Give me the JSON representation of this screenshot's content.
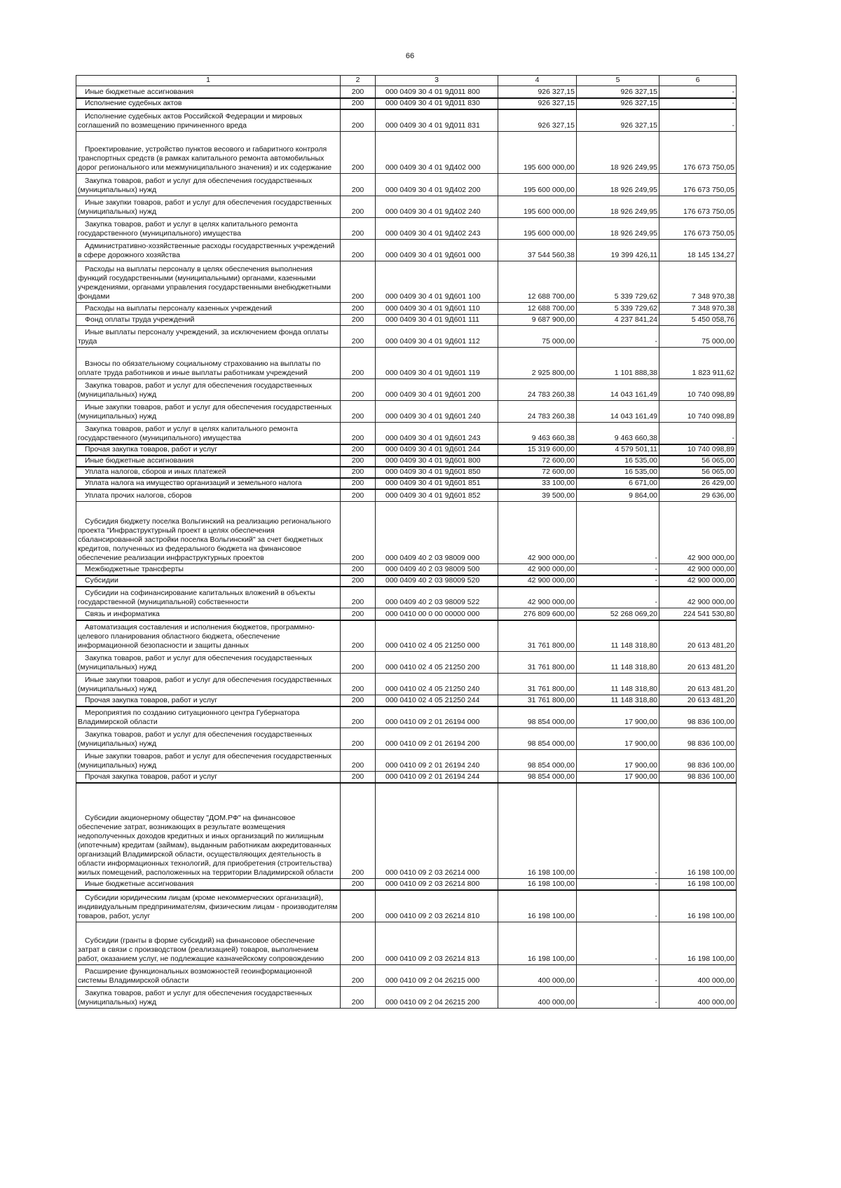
{
  "page_number": "66",
  "headers": [
    "1",
    "2",
    "3",
    "4",
    "5",
    "6"
  ],
  "rows": [
    [
      "Иные бюджетные ассигнования",
      "200",
      "000 0409 30 4 01 9Д011 800",
      "926 327,15",
      "926 327,15",
      "-"
    ],
    [
      "Исполнение судебных актов",
      "200",
      "000 0409 30 4 01 9Д011 830",
      "926 327,15",
      "926 327,15",
      "-"
    ],
    [
      "Исполнение судебных актов Российской Федерации и мировых соглашений по возмещению причиненного вреда",
      "200",
      "000 0409 30 4 01 9Д011 831",
      "926 327,15",
      "926 327,15",
      "-"
    ],
    [
      "Проектирование, устройство пунктов весового и габаритного контроля транспортных средств (в рамках капитального ремонта автомобильных дорог регионального или межмуниципального значения) и их содержание",
      "200",
      "000 0409 30 4 01 9Д402 000",
      "195 600 000,00",
      "18 926 249,95",
      "176 673 750,05"
    ],
    [
      "Закупка товаров, работ и услуг для обеспечения государственных (муниципальных) нужд",
      "200",
      "000 0409 30 4 01 9Д402 200",
      "195 600 000,00",
      "18 926 249,95",
      "176 673 750,05"
    ],
    [
      "Иные закупки товаров, работ и услуг для обеспечения государственных (муниципальных) нужд",
      "200",
      "000 0409 30 4 01 9Д402 240",
      "195 600 000,00",
      "18 926 249,95",
      "176 673 750,05"
    ],
    [
      "Закупка товаров, работ и услуг в целях капитального ремонта государственного (муниципального) имущества",
      "200",
      "000 0409 30 4 01 9Д402 243",
      "195 600 000,00",
      "18 926 249,95",
      "176 673 750,05"
    ],
    [
      "Административно-хозяйственные расходы государственных учреждений в сфере дорожного хозяйства",
      "200",
      "000 0409 30 4 01 9Д601 000",
      "37 544 560,38",
      "19 399 426,11",
      "18 145 134,27"
    ],
    [
      "Расходы на выплаты персоналу в целях обеспечения выполнения функций государственными (муниципальными) органами, казенными учреждениями, органами управления государственными внебюджетными фондами",
      "200",
      "000 0409 30 4 01 9Д601 100",
      "12 688 700,00",
      "5 339 729,62",
      "7 348 970,38"
    ],
    [
      "Расходы на выплаты персоналу казенных учреждений",
      "200",
      "000 0409 30 4 01 9Д601 110",
      "12 688 700,00",
      "5 339 729,62",
      "7 348 970,38"
    ],
    [
      "Фонд оплаты труда учреждений",
      "200",
      "000 0409 30 4 01 9Д601 111",
      "9 687 900,00",
      "4 237 841,24",
      "5 450 058,76"
    ],
    [
      "Иные выплаты персоналу учреждений, за исключением фонда оплаты труда",
      "200",
      "000 0409 30 4 01 9Д601 112",
      "75 000,00",
      "-",
      "75 000,00"
    ],
    [
      "Взносы по обязательному социальному страхованию на выплаты по оплате труда работников и иные выплаты работникам учреждений",
      "200",
      "000 0409 30 4 01 9Д601 119",
      "2 925 800,00",
      "1 101 888,38",
      "1 823 911,62"
    ],
    [
      "Закупка товаров, работ и услуг для обеспечения государственных (муниципальных) нужд",
      "200",
      "000 0409 30 4 01 9Д601 200",
      "24 783 260,38",
      "14 043 161,49",
      "10 740 098,89"
    ],
    [
      "Иные закупки товаров, работ и услуг для обеспечения государственных (муниципальных) нужд",
      "200",
      "000 0409 30 4 01 9Д601 240",
      "24 783 260,38",
      "14 043 161,49",
      "10 740 098,89"
    ],
    [
      "Закупка товаров, работ и услуг в целях капитального ремонта государственного (муниципального) имущества",
      "200",
      "000 0409 30 4 01 9Д601 243",
      "9 463 660,38",
      "9 463 660,38",
      "-"
    ],
    [
      "Прочая закупка товаров, работ и услуг",
      "200",
      "000 0409 30 4 01 9Д601 244",
      "15 319 600,00",
      "4 579 501,11",
      "10 740 098,89"
    ],
    [
      "Иные бюджетные ассигнования",
      "200",
      "000 0409 30 4 01 9Д601 800",
      "72 600,00",
      "16 535,00",
      "56 065,00"
    ],
    [
      "Уплата налогов, сборов и иных платежей",
      "200",
      "000 0409 30 4 01 9Д601 850",
      "72 600,00",
      "16 535,00",
      "56 065,00"
    ],
    [
      "Уплата налога на имущество организаций и земельного налога",
      "200",
      "000 0409 30 4 01 9Д601 851",
      "33 100,00",
      "6 671,00",
      "26 429,00"
    ],
    [
      "Уплата прочих налогов, сборов",
      "200",
      "000 0409 30 4 01 9Д601 852",
      "39 500,00",
      "9 864,00",
      "29 636,00"
    ],
    [
      "Субсидия бюджету поселка Вольгинский на реализацию регионального проекта \"Инфраструктурный проект в целях обеспечения сбалансированной застройки поселка Вольгинский\" за счет бюджетных кредитов, полученных из федерального бюджета на финансовое обеспечение реализации инфраструктурных проектов",
      "200",
      "000 0409 40 2 03 98009 000",
      "42 900 000,00",
      "-",
      "42 900 000,00"
    ],
    [
      "Межбюджетные трансферты",
      "200",
      "000 0409 40 2 03 98009 500",
      "42 900 000,00",
      "-",
      "42 900 000,00"
    ],
    [
      "Субсидии",
      "200",
      "000 0409 40 2 03 98009 520",
      "42 900 000,00",
      "-",
      "42 900 000,00"
    ],
    [
      "Субсидии на софинансирование капитальных вложений в объекты государственной (муниципальной) собственности",
      "200",
      "000 0409 40 2 03 98009 522",
      "42 900 000,00",
      "-",
      "42 900 000,00"
    ],
    [
      "Связь и информатика",
      "200",
      "000 0410 00 0 00 00000 000",
      "276 809 600,00",
      "52 268 069,20",
      "224 541 530,80"
    ],
    [
      "Автоматизация составления и исполнения бюджетов, программно-целевого планирования областного бюджета, обеспечение информационной безопасности и защиты данных",
      "200",
      "000 0410 02 4 05 21250 000",
      "31 761 800,00",
      "11 148 318,80",
      "20 613 481,20"
    ],
    [
      "Закупка товаров, работ и услуг для обеспечения государственных (муниципальных) нужд",
      "200",
      "000 0410 02 4 05 21250 200",
      "31 761 800,00",
      "11 148 318,80",
      "20 613 481,20"
    ],
    [
      "Иные закупки товаров, работ и услуг для обеспечения государственных (муниципальных) нужд",
      "200",
      "000 0410 02 4 05 21250 240",
      "31 761 800,00",
      "11 148 318,80",
      "20 613 481,20"
    ],
    [
      "Прочая закупка товаров, работ и услуг",
      "200",
      "000 0410 02 4 05 21250 244",
      "31 761 800,00",
      "11 148 318,80",
      "20 613 481,20"
    ],
    [
      "Мероприятия по созданию ситуационного центра Губернатора Владимирской области",
      "200",
      "000 0410 09 2 01 26194 000",
      "98 854 000,00",
      "17 900,00",
      "98 836 100,00"
    ],
    [
      "Закупка товаров, работ и услуг для обеспечения государственных (муниципальных) нужд",
      "200",
      "000 0410 09 2 01 26194 200",
      "98 854 000,00",
      "17 900,00",
      "98 836 100,00"
    ],
    [
      "Иные закупки товаров, работ и услуг для обеспечения государственных (муниципальных) нужд",
      "200",
      "000 0410 09 2 01 26194 240",
      "98 854 000,00",
      "17 900,00",
      "98 836 100,00"
    ],
    [
      "Прочая закупка товаров, работ и услуг",
      "200",
      "000 0410 09 2 01 26194 244",
      "98 854 000,00",
      "17 900,00",
      "98 836 100,00"
    ],
    [
      "Субсидии акционерному обществу \"ДОМ.РФ\" на финансовое обеспечение затрат, возникающих в результате возмещения недополученных доходов кредитных и иных организаций по жилищным (ипотечным) кредитам (займам), выданным работникам аккредитованных организаций Владимирской области, осуществляющих деятельность в области информационных технологий, для приобретения (строительства) жилых помещений, расположенных на территории Владимирской области",
      "200",
      "000 0410 09 2 03 26214 000",
      "16 198 100,00",
      "-",
      "16 198 100,00"
    ],
    [
      "Иные бюджетные ассигнования",
      "200",
      "000 0410 09 2 03 26214 800",
      "16 198 100,00",
      "-",
      "16 198 100,00"
    ],
    [
      "Субсидии юридическим лицам (кроме некоммерческих организаций), индивидуальным предпринимателям, физическим лицам - производителям товаров, работ, услуг",
      "200",
      "000 0410 09 2 03 26214 810",
      "16 198 100,00",
      "-",
      "16 198 100,00"
    ],
    [
      "Субсидии (гранты в форме субсидий) на финансовое обеспечение затрат в связи с производством (реализацией) товаров, выполнением работ, оказанием услуг, не подлежащие казначейскому сопровождению",
      "200",
      "000 0410 09 2 03 26214 813",
      "16 198 100,00",
      "-",
      "16 198 100,00"
    ],
    [
      "Расширение функциональных возможностей геоинформационной системы Владимирской области",
      "200",
      "000 0410 09 2 04 26215 000",
      "400 000,00",
      "-",
      "400 000,00"
    ],
    [
      "Закупка товаров, работ и услуг для обеспечения государственных (муниципальных) нужд",
      "200",
      "000 0410 09 2 04 26215 200",
      "400 000,00",
      "-",
      "400 000,00"
    ]
  ]
}
